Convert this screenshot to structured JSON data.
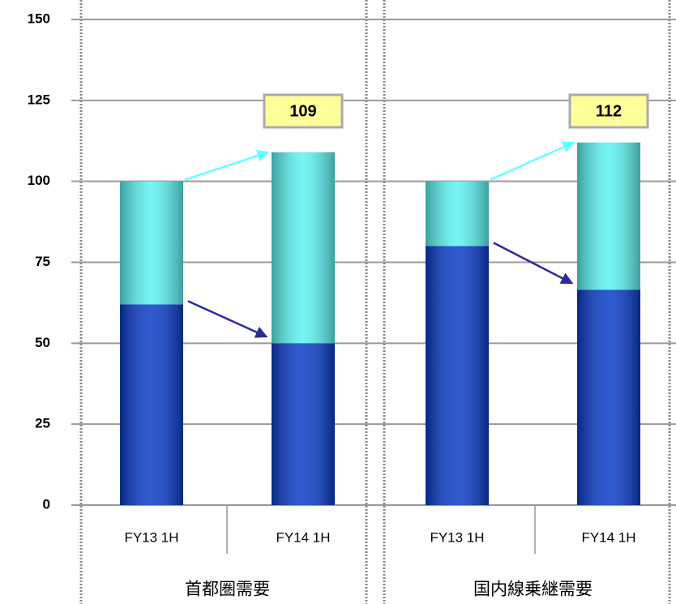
{
  "chart_data": {
    "type": "stacked_bar",
    "categories": [
      "FY13 1H",
      "FY14 1H",
      "FY13 1H",
      "FY14 1H"
    ],
    "groups": [
      "首都圏需要",
      "国内線乗継需要"
    ],
    "series": [
      {
        "color": "#0a3cc8",
        "values": [
          62,
          50,
          80,
          66.5
        ]
      },
      {
        "color": "#5ef4f4",
        "values": [
          38,
          59,
          20,
          45.5
        ]
      }
    ],
    "totals": [
      null,
      109,
      null,
      112
    ],
    "ylim": [
      0,
      150
    ],
    "yticks": [
      0,
      25,
      50,
      75,
      100,
      125,
      150
    ],
    "grid": true
  }
}
